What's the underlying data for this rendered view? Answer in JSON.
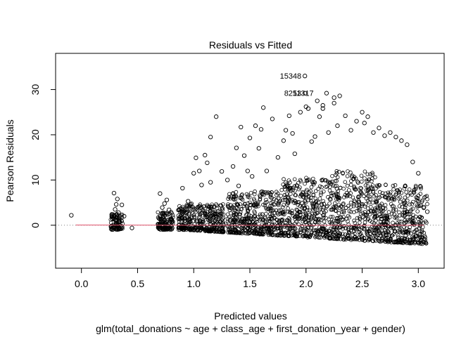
{
  "chart_data": {
    "type": "scatter",
    "title": "Residuals vs Fitted",
    "xlabel": "Predicted values",
    "subtitle": "glm(total_donations ~ age + class_age + first_donation_year + gender)",
    "ylabel": "Pearson Residuals",
    "xlim": [
      -0.23,
      3.23
    ],
    "ylim": [
      -9.5,
      38
    ],
    "x_ticks": [
      0.0,
      0.5,
      1.0,
      1.5,
      2.0,
      2.5,
      3.0
    ],
    "x_tick_labels": [
      "0.0",
      "0.5",
      "1.0",
      "1.5",
      "2.0",
      "2.5",
      "3.0"
    ],
    "y_ticks": [
      0,
      10,
      20,
      30
    ],
    "y_tick_labels": [
      "0",
      "10",
      "20",
      "30"
    ],
    "reference_line": {
      "y": 0,
      "style": "dotted",
      "color": "#808080"
    },
    "smooth_line": {
      "color": "#df536b",
      "x": [
        -0.05,
        0.5,
        1.0,
        1.5,
        2.0,
        2.5,
        3.05
      ],
      "y": [
        0.05,
        0.02,
        0.0,
        -0.02,
        -0.03,
        -0.02,
        0.0
      ]
    },
    "point_color": "#000000",
    "labeled_points": [
      {
        "label": "15348",
        "x": 1.99,
        "y": 33.0
      },
      {
        "label": "8253",
        "x": 1.99,
        "y": 29.2
      },
      {
        "label": "11317",
        "x": 2.12,
        "y": 29.2
      }
    ],
    "points": {
      "x": [
        -0.09,
        0.27,
        0.3,
        0.31,
        0.32,
        0.29,
        0.3,
        0.31,
        0.33,
        0.36,
        0.38,
        0.45,
        0.7,
        0.72,
        0.74,
        0.76,
        0.78,
        0.7,
        0.73,
        0.77,
        0.8,
        0.9,
        0.95,
        1.0,
        1.02,
        1.05,
        1.07,
        1.1,
        1.12,
        1.15,
        1.2,
        1.25,
        1.3,
        1.35,
        1.38,
        1.4,
        1.42,
        1.45,
        1.48,
        1.5,
        1.52,
        1.55,
        1.58,
        1.6,
        1.65,
        1.7,
        1.75,
        1.8,
        1.82,
        1.85,
        1.88,
        1.9,
        1.95,
        2.0,
        2.02,
        2.05,
        2.08,
        2.1,
        2.12,
        2.15,
        2.2,
        2.25,
        2.28,
        2.3,
        2.35,
        2.4,
        2.45,
        2.5,
        2.52,
        2.55,
        2.6,
        2.65,
        2.7,
        2.75,
        2.8,
        2.85,
        2.9,
        2.95,
        3.0,
        3.02,
        3.05,
        3.08,
        1.15,
        1.62,
        2.15,
        2.25
      ],
      "y": [
        2.2,
        2.3,
        3.5,
        4.6,
        5.8,
        7.1,
        1.2,
        0.5,
        2.8,
        4.5,
        2.0,
        -0.6,
        2.0,
        3.9,
        4.8,
        5.6,
        3.4,
        7.0,
        0.6,
        2.4,
        1.3,
        8.2,
        5.3,
        11.5,
        14.9,
        12.0,
        8.9,
        15.5,
        13.8,
        19.5,
        24.0,
        11.9,
        10.0,
        13.0,
        17.1,
        8.7,
        21.7,
        15.4,
        12.0,
        19.3,
        10.8,
        22.0,
        17.0,
        21.2,
        12.0,
        23.5,
        15.0,
        18.7,
        21.0,
        24.2,
        20.3,
        15.8,
        25.0,
        26.2,
        25.8,
        18.5,
        19.6,
        27.5,
        24.0,
        26.5,
        20.5,
        28.2,
        22.0,
        28.6,
        24.2,
        21.0,
        23.0,
        25.0,
        22.6,
        24.0,
        20.5,
        21.5,
        19.8,
        20.5,
        19.5,
        18.7,
        17.8,
        14.0,
        11.5,
        8.5,
        4.0,
        3.0,
        9.5,
        26.0,
        25.8,
        27.0
      ]
    }
  }
}
